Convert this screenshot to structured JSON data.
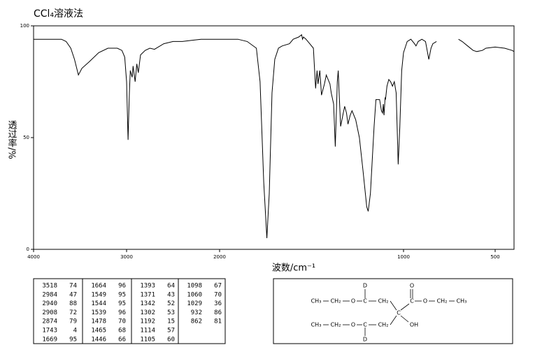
{
  "chart_data": {
    "type": "line",
    "title": "CCl₄溶液法",
    "x_label": "波数/cm⁻¹",
    "y_label": "透过率/%",
    "xlim": [
      4000,
      400
    ],
    "xticks": [
      4000,
      3000,
      2000,
      1000,
      500
    ],
    "ylim": [
      0,
      100
    ],
    "yticks": [
      0,
      50,
      100
    ],
    "color": "#000000",
    "x": [
      4000,
      3800,
      3700,
      3650,
      3600,
      3560,
      3518,
      3480,
      3400,
      3300,
      3200,
      3100,
      3050,
      3020,
      3000,
      2984,
      2970,
      2960,
      2940,
      2930,
      2908,
      2890,
      2874,
      2850,
      2800,
      2750,
      2700,
      2600,
      2500,
      2400,
      2300,
      2200,
      2100,
      2000,
      1900,
      1850,
      1800,
      1780,
      1760,
      1743,
      1730,
      1715,
      1700,
      1680,
      1660,
      1620,
      1600,
      1570,
      1554,
      1549,
      1544,
      1530,
      1510,
      1490,
      1478,
      1470,
      1465,
      1455,
      1446,
      1430,
      1420,
      1400,
      1393,
      1380,
      1371,
      1360,
      1355,
      1350,
      1342,
      1330,
      1320,
      1310,
      1302,
      1290,
      1280,
      1260,
      1240,
      1220,
      1200,
      1192,
      1180,
      1170,
      1160,
      1150,
      1140,
      1130,
      1120,
      1114,
      1110,
      1106,
      1100,
      1098,
      1090,
      1080,
      1070,
      1060,
      1050,
      1040,
      1029,
      1020,
      1010,
      1000,
      980,
      960,
      940,
      932,
      920,
      900,
      880,
      862,
      850,
      840,
      820,
      760,
      700,
      680,
      650,
      620,
      600,
      570,
      550,
      500,
      450,
      410,
      400
    ],
    "values": [
      94,
      94,
      94,
      93,
      90,
      85,
      78,
      81,
      84,
      88,
      90,
      90,
      89,
      86,
      75,
      49,
      70,
      80,
      77,
      82,
      75,
      83,
      79,
      87,
      89,
      90,
      89.5,
      92,
      93,
      93,
      93.5,
      94,
      94,
      94,
      94,
      93,
      90,
      75,
      30,
      5,
      25,
      70,
      85,
      90,
      91,
      92,
      94,
      95,
      96,
      94,
      95,
      94,
      92,
      90,
      72,
      80,
      74,
      80,
      69,
      74,
      78,
      74,
      70,
      65,
      46,
      75,
      80,
      70,
      55,
      60,
      64,
      61,
      56,
      60,
      62,
      58,
      50,
      35,
      19,
      17,
      25,
      40,
      55,
      67,
      67,
      67,
      62,
      61,
      65,
      60,
      68,
      67,
      73,
      76,
      75,
      73,
      75,
      70,
      38,
      55,
      80,
      88,
      93,
      94,
      92,
      91,
      93,
      94,
      93,
      85,
      90,
      92,
      93,
      null,
      94,
      93,
      91,
      89,
      88.5,
      89,
      90,
      90.5,
      90,
      89,
      88.5
    ]
  },
  "peak_table": {
    "columns": [
      [
        [
          3518,
          74
        ],
        [
          2984,
          47
        ],
        [
          2940,
          88
        ],
        [
          2908,
          72
        ],
        [
          2874,
          79
        ],
        [
          1743,
          4
        ],
        [
          1669,
          95
        ]
      ],
      [
        [
          1664,
          96
        ],
        [
          1549,
          95
        ],
        [
          1544,
          95
        ],
        [
          1539,
          96
        ],
        [
          1478,
          70
        ],
        [
          1465,
          68
        ],
        [
          1446,
          66
        ]
      ],
      [
        [
          1393,
          64
        ],
        [
          1371,
          43
        ],
        [
          1342,
          52
        ],
        [
          1302,
          53
        ],
        [
          1192,
          15
        ],
        [
          1114,
          57
        ],
        [
          1105,
          60
        ]
      ],
      [
        [
          1098,
          67
        ],
        [
          1060,
          70
        ],
        [
          1029,
          36
        ],
        [
          932,
          86
        ],
        [
          862,
          81
        ]
      ]
    ]
  },
  "structure": {
    "atoms": [
      "CH₃",
      "CH₂",
      "O",
      "C",
      "D",
      "CH₂",
      "C",
      "C",
      "O",
      "O",
      "CH₂",
      "CH₃",
      "CH₃",
      "CH₂",
      "O",
      "C",
      "D",
      "CH₂",
      "OH"
    ]
  }
}
